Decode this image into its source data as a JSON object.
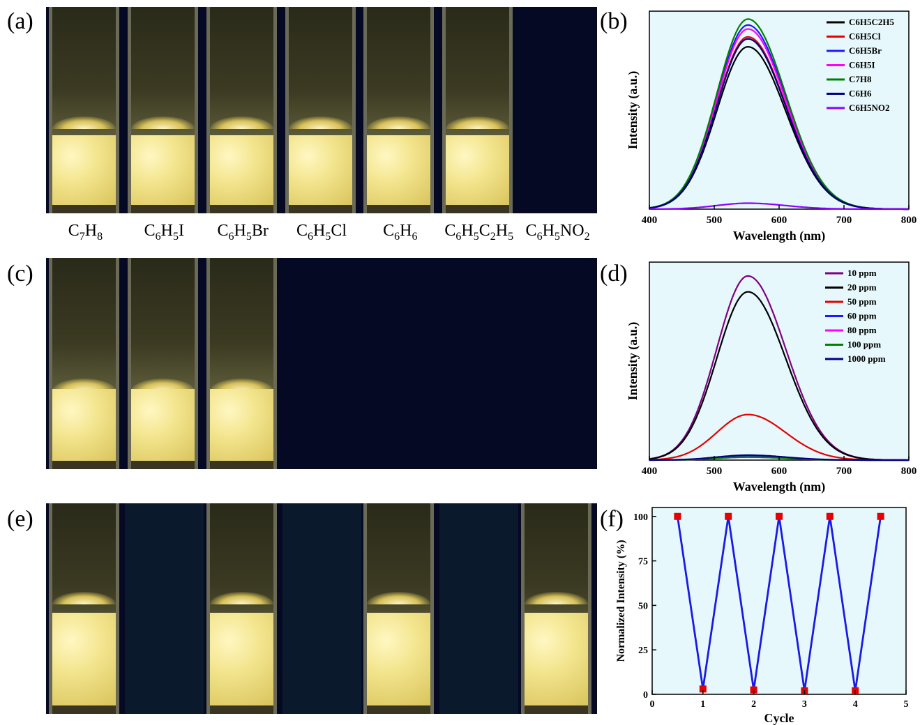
{
  "panel_labels": {
    "a": "(a)",
    "b": "(b)",
    "c": "(c)",
    "d": "(d)",
    "e": "(e)",
    "f": "(f)"
  },
  "panel_a": {
    "vials": [
      {
        "label_main": "C",
        "sub1": "7",
        "mid": "H",
        "sub2": "8",
        "state": "lit"
      },
      {
        "label_main": "C",
        "sub1": "6",
        "mid": "H",
        "sub2": "5",
        "tail": "I",
        "state": "lit"
      },
      {
        "label_main": "C",
        "sub1": "6",
        "mid": "H",
        "sub2": "5",
        "tail": "Br",
        "state": "lit"
      },
      {
        "label_main": "C",
        "sub1": "6",
        "mid": "H",
        "sub2": "5",
        "tail": "Cl",
        "state": "lit"
      },
      {
        "label_main": "C",
        "sub1": "6",
        "mid": "H",
        "sub2": "6",
        "state": "lit"
      },
      {
        "label_main": "C",
        "sub1": "6",
        "mid": "H",
        "sub2": "5",
        "tail": "C",
        "sub3": "2",
        "tail2": "H",
        "sub4": "5",
        "state": "lit"
      },
      {
        "label_main": "C",
        "sub1": "6",
        "mid": "H",
        "sub2": "5",
        "tail": "NO",
        "sub3": "2",
        "state": "quenched"
      }
    ],
    "labels_text": [
      "C7H8",
      "C6H5I",
      "C6H5Br",
      "C6H5Cl",
      "C6H6",
      "C6H5C2H5",
      "C6H5NO2"
    ]
  },
  "panel_c": {
    "states": [
      "lit",
      "lit",
      "lit",
      "quenched",
      "quenched",
      "quenched",
      "quenched"
    ]
  },
  "panel_e": {
    "states": [
      "lit",
      "quenched",
      "lit",
      "quenched",
      "lit",
      "quenched",
      "lit"
    ]
  },
  "colors": {
    "photo_dark": "#050924",
    "plot_bg": "#e6f8fb",
    "powder": "#f3e58e",
    "vial_glow": "#d8c25a",
    "line_blue": "#1a1ae6",
    "marker_red": "#e60000"
  },
  "chart_data": [
    {
      "type": "line",
      "id": "b",
      "xlabel": "Wavelength (nm)",
      "ylabel": "Intensity (a.u.)",
      "xlim": [
        400,
        800
      ],
      "xticks": [
        400,
        500,
        600,
        700,
        800
      ],
      "y_ticks_shown": false,
      "legend_position": "top-right",
      "peak_center": 552,
      "series": [
        {
          "name": "C6H5C2H5",
          "color": "#000000",
          "peak": 0.82
        },
        {
          "name": "C6H5Cl",
          "color": "#e60000",
          "peak": 0.87
        },
        {
          "name": "C6H5Br",
          "color": "#1a1aff",
          "peak": 0.93
        },
        {
          "name": "C6H5I",
          "color": "#ff00ff",
          "peak": 0.91
        },
        {
          "name": "C7H8",
          "color": "#008000",
          "peak": 0.96
        },
        {
          "name": "C6H6",
          "color": "#000080",
          "peak": 0.86
        },
        {
          "name": "C6H5NO2",
          "color": "#8b00ff",
          "peak": 0.03
        }
      ]
    },
    {
      "type": "line",
      "id": "d",
      "xlabel": "Wavelength (nm)",
      "ylabel": "Intensity (a.u.)",
      "xlim": [
        400,
        800
      ],
      "xticks": [
        400,
        500,
        600,
        700,
        800
      ],
      "y_ticks_shown": false,
      "legend_position": "top-right",
      "peak_center": 552,
      "series": [
        {
          "name": "10 ppm",
          "color": "#800080",
          "peak": 0.93
        },
        {
          "name": "20 ppm",
          "color": "#000000",
          "peak": 0.85
        },
        {
          "name": "50 ppm",
          "color": "#e60000",
          "peak": 0.23
        },
        {
          "name": "60 ppm",
          "color": "#1a1aff",
          "peak": 0.02
        },
        {
          "name": "80 ppm",
          "color": "#ff00ff",
          "peak": 0.015
        },
        {
          "name": "100 ppm",
          "color": "#008000",
          "peak": 0.015
        },
        {
          "name": "1000 ppm",
          "color": "#000080",
          "peak": 0.025
        }
      ]
    },
    {
      "type": "line",
      "id": "f",
      "xlabel": "Cycle",
      "ylabel": "Normalized Intensity (%)",
      "xlim": [
        0,
        5
      ],
      "ylim": [
        0,
        105
      ],
      "xticks": [
        0,
        1,
        2,
        3,
        4,
        5
      ],
      "yticks": [
        0,
        25,
        50,
        75,
        100
      ],
      "x": [
        0.5,
        1,
        1.5,
        2,
        2.5,
        3,
        3.5,
        4,
        4.5
      ],
      "y": [
        100,
        3,
        100,
        2.5,
        100,
        2,
        100,
        2,
        100
      ]
    }
  ]
}
